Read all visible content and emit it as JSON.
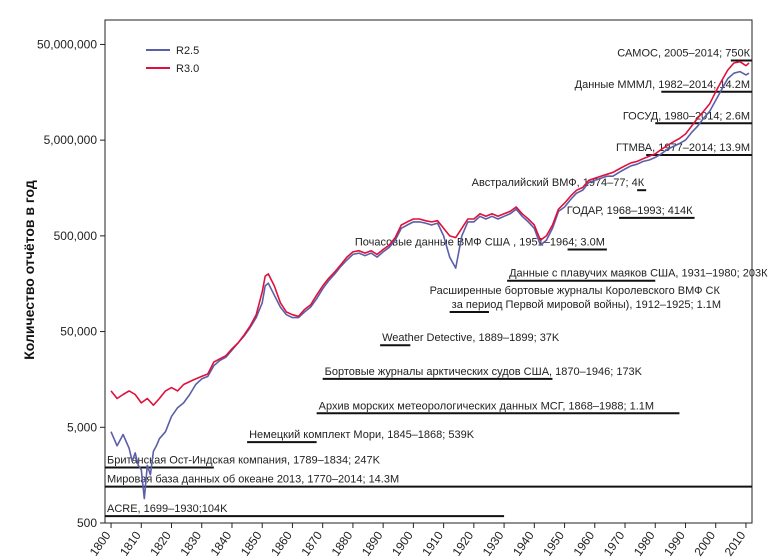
{
  "chart_data": {
    "type": "line",
    "title": "",
    "xlabel": "",
    "ylabel": "Количество отчётов в год",
    "yscale": "log",
    "xlim": [
      1798,
      2012
    ],
    "ylim": [
      500,
      90000000
    ],
    "x_ticks": [
      1800,
      1810,
      1820,
      1830,
      1840,
      1850,
      1860,
      1870,
      1880,
      1890,
      1900,
      1910,
      1920,
      1930,
      1940,
      1950,
      1960,
      1970,
      1980,
      1990,
      2000,
      2010
    ],
    "x_tick_labels": [
      "1800",
      "1810",
      "1820",
      "1830",
      "1840",
      "1850",
      "1860",
      "1870",
      "1880",
      "1890",
      "1900",
      "1910",
      "1920",
      "1930",
      "1940",
      "1950",
      "1960",
      "1970",
      "1980",
      "1990",
      "2000",
      "2010"
    ],
    "y_ticks": [
      500,
      5000,
      50000,
      500000,
      5000000,
      50000000
    ],
    "y_tick_labels": [
      "500",
      "5,000",
      "50,000",
      "500,000",
      "5,000,000",
      "50,000,000"
    ],
    "grid": false,
    "legend_position": "top-left",
    "series": [
      {
        "name": "R2.5",
        "color": "#5b5fa8",
        "points": [
          [
            1800,
            4500
          ],
          [
            1802,
            3200
          ],
          [
            1804,
            4200
          ],
          [
            1806,
            3000
          ],
          [
            1807,
            2200
          ],
          [
            1808,
            2700
          ],
          [
            1809,
            2000
          ],
          [
            1810,
            1800
          ],
          [
            1811,
            900
          ],
          [
            1812,
            2000
          ],
          [
            1813,
            1600
          ],
          [
            1814,
            2800
          ],
          [
            1815,
            3200
          ],
          [
            1816,
            3800
          ],
          [
            1818,
            4500
          ],
          [
            1820,
            6500
          ],
          [
            1822,
            8000
          ],
          [
            1824,
            9000
          ],
          [
            1826,
            11000
          ],
          [
            1828,
            14000
          ],
          [
            1830,
            16000
          ],
          [
            1832,
            17000
          ],
          [
            1834,
            22000
          ],
          [
            1836,
            25000
          ],
          [
            1838,
            27000
          ],
          [
            1840,
            32000
          ],
          [
            1842,
            38000
          ],
          [
            1844,
            45000
          ],
          [
            1846,
            55000
          ],
          [
            1848,
            70000
          ],
          [
            1850,
            100000
          ],
          [
            1851,
            150000
          ],
          [
            1852,
            160000
          ],
          [
            1854,
            120000
          ],
          [
            1856,
            90000
          ],
          [
            1858,
            75000
          ],
          [
            1860,
            70000
          ],
          [
            1862,
            70000
          ],
          [
            1864,
            80000
          ],
          [
            1866,
            90000
          ],
          [
            1868,
            110000
          ],
          [
            1870,
            140000
          ],
          [
            1872,
            170000
          ],
          [
            1874,
            200000
          ],
          [
            1876,
            240000
          ],
          [
            1878,
            280000
          ],
          [
            1880,
            320000
          ],
          [
            1882,
            330000
          ],
          [
            1884,
            310000
          ],
          [
            1886,
            330000
          ],
          [
            1888,
            300000
          ],
          [
            1890,
            340000
          ],
          [
            1892,
            380000
          ],
          [
            1894,
            450000
          ],
          [
            1896,
            600000
          ],
          [
            1898,
            650000
          ],
          [
            1900,
            700000
          ],
          [
            1902,
            700000
          ],
          [
            1904,
            680000
          ],
          [
            1906,
            650000
          ],
          [
            1908,
            680000
          ],
          [
            1910,
            500000
          ],
          [
            1912,
            300000
          ],
          [
            1914,
            230000
          ],
          [
            1916,
            500000
          ],
          [
            1918,
            700000
          ],
          [
            1920,
            700000
          ],
          [
            1922,
            800000
          ],
          [
            1924,
            750000
          ],
          [
            1926,
            800000
          ],
          [
            1928,
            750000
          ],
          [
            1930,
            800000
          ],
          [
            1932,
            850000
          ],
          [
            1934,
            950000
          ],
          [
            1936,
            800000
          ],
          [
            1938,
            700000
          ],
          [
            1940,
            600000
          ],
          [
            1942,
            400000
          ],
          [
            1944,
            450000
          ],
          [
            1946,
            600000
          ],
          [
            1948,
            900000
          ],
          [
            1950,
            1000000
          ],
          [
            1952,
            1200000
          ],
          [
            1954,
            1400000
          ],
          [
            1956,
            1500000
          ],
          [
            1958,
            1800000
          ],
          [
            1960,
            1900000
          ],
          [
            1962,
            2000000
          ],
          [
            1964,
            2100000
          ],
          [
            1966,
            2100000
          ],
          [
            1968,
            2300000
          ],
          [
            1970,
            2500000
          ],
          [
            1972,
            2700000
          ],
          [
            1974,
            2800000
          ],
          [
            1976,
            3000000
          ],
          [
            1978,
            3100000
          ],
          [
            1980,
            3300000
          ],
          [
            1982,
            3600000
          ],
          [
            1984,
            4000000
          ],
          [
            1986,
            4300000
          ],
          [
            1988,
            4600000
          ],
          [
            1990,
            5000000
          ],
          [
            1992,
            6000000
          ],
          [
            1994,
            7000000
          ],
          [
            1996,
            8500000
          ],
          [
            1998,
            10000000
          ],
          [
            2000,
            13000000
          ],
          [
            2002,
            17000000
          ],
          [
            2004,
            22000000
          ],
          [
            2006,
            25000000
          ],
          [
            2008,
            26000000
          ],
          [
            2010,
            24000000
          ],
          [
            2011,
            25000000
          ]
        ]
      },
      {
        "name": "R3.0",
        "color": "#e0103c",
        "points": [
          [
            1800,
            12000
          ],
          [
            1802,
            10000
          ],
          [
            1804,
            11000
          ],
          [
            1806,
            12000
          ],
          [
            1808,
            11000
          ],
          [
            1810,
            9000
          ],
          [
            1812,
            10000
          ],
          [
            1814,
            8500
          ],
          [
            1816,
            10000
          ],
          [
            1818,
            12000
          ],
          [
            1820,
            13000
          ],
          [
            1822,
            12000
          ],
          [
            1824,
            14000
          ],
          [
            1826,
            15000
          ],
          [
            1828,
            16000
          ],
          [
            1830,
            17000
          ],
          [
            1832,
            18000
          ],
          [
            1834,
            24000
          ],
          [
            1836,
            26000
          ],
          [
            1838,
            28000
          ],
          [
            1840,
            33000
          ],
          [
            1842,
            38000
          ],
          [
            1844,
            46000
          ],
          [
            1846,
            57000
          ],
          [
            1848,
            75000
          ],
          [
            1850,
            130000
          ],
          [
            1851,
            190000
          ],
          [
            1852,
            200000
          ],
          [
            1854,
            150000
          ],
          [
            1856,
            100000
          ],
          [
            1858,
            80000
          ],
          [
            1860,
            75000
          ],
          [
            1862,
            72000
          ],
          [
            1864,
            85000
          ],
          [
            1866,
            95000
          ],
          [
            1868,
            120000
          ],
          [
            1870,
            150000
          ],
          [
            1872,
            180000
          ],
          [
            1874,
            210000
          ],
          [
            1876,
            250000
          ],
          [
            1878,
            300000
          ],
          [
            1880,
            340000
          ],
          [
            1882,
            350000
          ],
          [
            1884,
            330000
          ],
          [
            1886,
            350000
          ],
          [
            1888,
            320000
          ],
          [
            1890,
            360000
          ],
          [
            1892,
            400000
          ],
          [
            1894,
            480000
          ],
          [
            1896,
            650000
          ],
          [
            1898,
            700000
          ],
          [
            1900,
            750000
          ],
          [
            1902,
            750000
          ],
          [
            1904,
            720000
          ],
          [
            1906,
            700000
          ],
          [
            1908,
            720000
          ],
          [
            1910,
            600000
          ],
          [
            1912,
            500000
          ],
          [
            1914,
            480000
          ],
          [
            1916,
            600000
          ],
          [
            1918,
            750000
          ],
          [
            1920,
            750000
          ],
          [
            1922,
            850000
          ],
          [
            1924,
            800000
          ],
          [
            1926,
            850000
          ],
          [
            1928,
            800000
          ],
          [
            1930,
            850000
          ],
          [
            1932,
            900000
          ],
          [
            1934,
            1000000
          ],
          [
            1936,
            850000
          ],
          [
            1938,
            750000
          ],
          [
            1940,
            650000
          ],
          [
            1942,
            450000
          ],
          [
            1944,
            500000
          ],
          [
            1946,
            650000
          ],
          [
            1948,
            950000
          ],
          [
            1950,
            1100000
          ],
          [
            1952,
            1300000
          ],
          [
            1954,
            1500000
          ],
          [
            1956,
            1600000
          ],
          [
            1958,
            1900000
          ],
          [
            1960,
            2000000
          ],
          [
            1962,
            2100000
          ],
          [
            1964,
            2200000
          ],
          [
            1966,
            2300000
          ],
          [
            1968,
            2500000
          ],
          [
            1970,
            2700000
          ],
          [
            1972,
            2900000
          ],
          [
            1974,
            3000000
          ],
          [
            1976,
            3200000
          ],
          [
            1978,
            3400000
          ],
          [
            1980,
            3600000
          ],
          [
            1982,
            4000000
          ],
          [
            1984,
            4400000
          ],
          [
            1986,
            4800000
          ],
          [
            1988,
            5200000
          ],
          [
            1990,
            5800000
          ],
          [
            1992,
            7000000
          ],
          [
            1994,
            8500000
          ],
          [
            1996,
            10000000
          ],
          [
            1998,
            12000000
          ],
          [
            2000,
            16000000
          ],
          [
            2002,
            21000000
          ],
          [
            2004,
            27000000
          ],
          [
            2006,
            32000000
          ],
          [
            2008,
            33000000
          ],
          [
            2010,
            30000000
          ],
          [
            2011,
            32000000
          ]
        ]
      }
    ],
    "annotations": [
      {
        "label": "САМОС, 2005–2014; 750К",
        "start": 2005,
        "end": 2014,
        "y": 34000000
      },
      {
        "label": "Данные МММЛ, 1982–2014; 14.2М",
        "start": 1982,
        "end": 2014,
        "y": 16000000
      },
      {
        "label": "ГОСУД, 1980–2014; 2.6М",
        "start": 1980,
        "end": 2014,
        "y": 7500000
      },
      {
        "label": "ГТМВА, 1977–2014; 13.9М",
        "start": 1977,
        "end": 2014,
        "y": 3500000
      },
      {
        "label": "Австралийский ВМФ, 1974–77; 4К",
        "start": 1974,
        "end": 1977,
        "y": 1500000
      },
      {
        "label": "ГОДАР, 1968–1993; 414К",
        "start": 1968,
        "end": 1993,
        "y": 770000
      },
      {
        "label": "Почасовые данные ВМФ США , 1951–1964; 3.0М",
        "start": 1951,
        "end": 1964,
        "y": 360000
      },
      {
        "label": "Данные с плавучих маяков США, 1931–1980; 203К",
        "start": 1931,
        "end": 1980,
        "y": 170000
      },
      {
        "label": "Расширенные бортовые журналы Королевского ВМФ СК",
        "start": null,
        "end": null,
        "y": null
      },
      {
        "label": "за период Первой мировой войны), 1912–1925; 1.1М",
        "start": 1912,
        "end": 1925,
        "y": 80000
      },
      {
        "label": "Weather Detective, 1889–1899; 37K",
        "start": 1889,
        "end": 1899,
        "y": 36000
      },
      {
        "label": "Бортовые журналы арктических судов США, 1870–1946; 173K",
        "start": 1870,
        "end": 1946,
        "y": 16000
      },
      {
        "label": "Архив морских метеорологических данных МСГ, 1868–1988; 1.1М",
        "start": 1868,
        "end": 1988,
        "y": 7000
      },
      {
        "label": "Немецкий комплект Мори, 1845–1868; 539K",
        "start": 1845,
        "end": 1868,
        "y": 3500
      },
      {
        "label": "Британская Ост-Индская компания, 1789–1834; 247K",
        "start": 1789,
        "end": 1834,
        "y": 1900
      },
      {
        "label": "Мировая база данных об океане 2013, 1770–2014; 14.3М",
        "start": 1770,
        "end": 2014,
        "y": 1200
      },
      {
        "label": "ACRE, 1699–1930;104K",
        "start": 1699,
        "end": 1930,
        "y": 590
      }
    ]
  }
}
